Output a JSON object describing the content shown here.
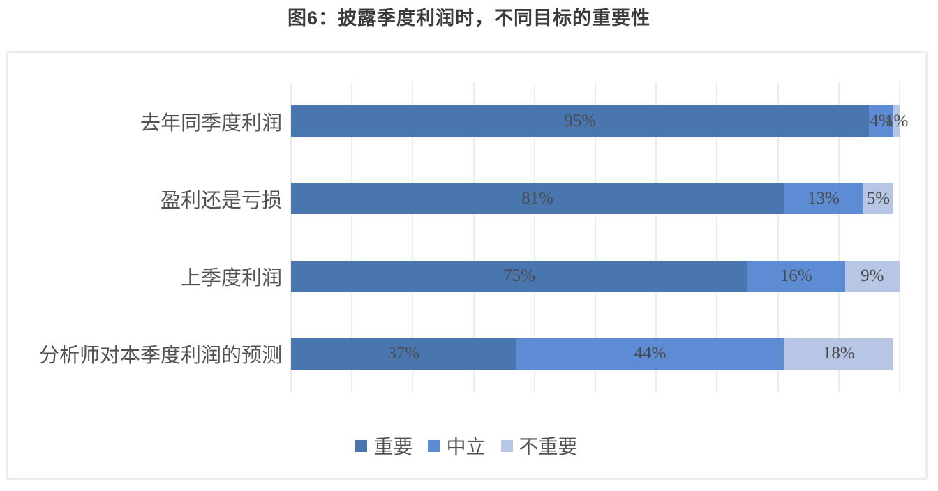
{
  "chart_data": {
    "type": "bar",
    "orientation": "horizontal",
    "stacked": true,
    "title": "图6：披露季度利润时，不同目标的重要性",
    "categories": [
      "去年同季度利润",
      "盈利还是亏损",
      "上季度利润",
      "分析师对本季度利润的预测"
    ],
    "series": [
      {
        "name": "重要",
        "color": "#4A76B0",
        "values": [
          95,
          81,
          75,
          37
        ]
      },
      {
        "name": "中立",
        "color": "#5D8CD4",
        "values": [
          4,
          13,
          16,
          44
        ]
      },
      {
        "name": "不重要",
        "color": "#B7C6E4",
        "values": [
          1,
          5,
          9,
          18
        ]
      }
    ],
    "value_suffix": "%",
    "xlim": [
      0,
      100
    ],
    "gridline_interval_percent": 10,
    "grid_on": true,
    "legend_position": "bottom",
    "legend_labels": [
      "重要",
      "中立",
      "不重要"
    ]
  },
  "colors": {
    "grid": "#EDEDED",
    "frame_border": "#ECECEC",
    "title_text": "#3B3B3B",
    "category_text": "#525252",
    "value_text": "#4A4A4A",
    "background": "#FFFFFF"
  }
}
